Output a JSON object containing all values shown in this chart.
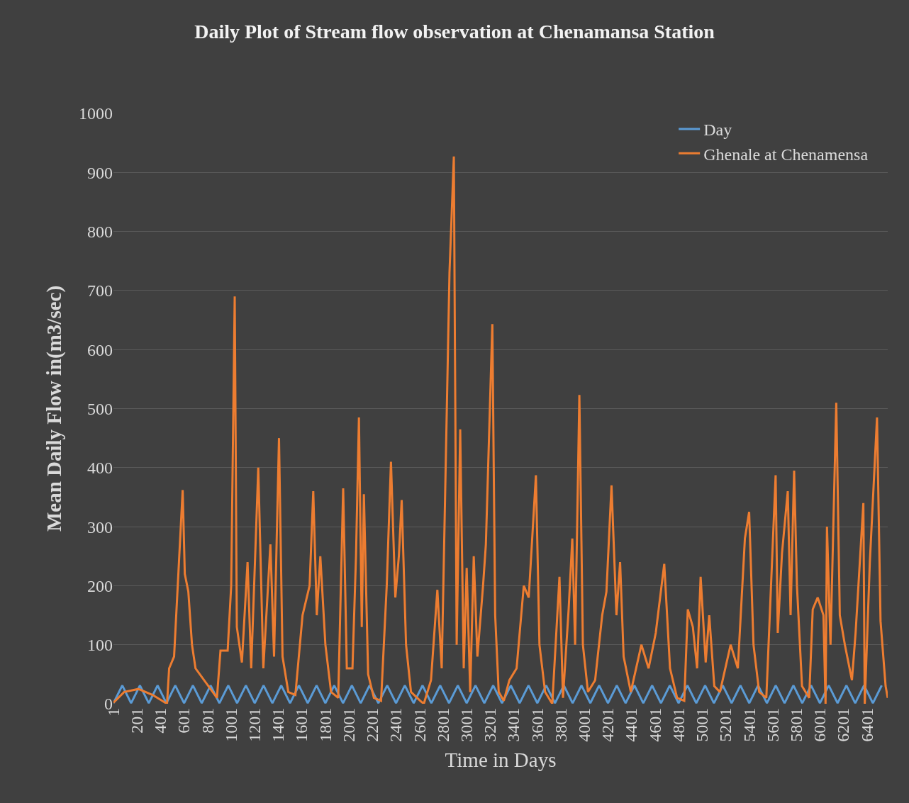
{
  "chart_data": {
    "type": "line",
    "title": "Daily Plot of Stream flow observation at Chenamansa Station",
    "xlabel": "Time in Days",
    "ylabel": "Mean Daily Flow in(m3/sec)",
    "xlim": [
      1,
      6577
    ],
    "xticks": [
      1,
      201,
      401,
      601,
      801,
      1001,
      1201,
      1401,
      1601,
      1801,
      2001,
      2201,
      2401,
      2601,
      2801,
      3001,
      3201,
      3401,
      3601,
      3801,
      4001,
      4201,
      4401,
      4601,
      4801,
      5001,
      5201,
      5401,
      5601,
      5801,
      6001,
      6201,
      6401
    ],
    "ylim": [
      0,
      1000
    ],
    "yticks": [
      0,
      100,
      200,
      300,
      400,
      500,
      600,
      700,
      800,
      900,
      1000
    ],
    "grid": "y",
    "legend": "top right",
    "marker": "none",
    "line_style": "solid",
    "series": [
      {
        "name": "Day",
        "color": "#5b9bd5",
        "x": [
          1,
          76,
          151,
          226,
          301,
          376,
          451,
          526,
          601,
          676,
          751,
          826,
          901,
          976,
          1051,
          1126,
          1201,
          1276,
          1351,
          1426,
          1501,
          1576,
          1651,
          1726,
          1801,
          1876,
          1951,
          2026,
          2101,
          2176,
          2251,
          2326,
          2401,
          2476,
          2551,
          2626,
          2701,
          2776,
          2851,
          2926,
          3001,
          3076,
          3151,
          3226,
          3301,
          3376,
          3451,
          3526,
          3601,
          3676,
          3751,
          3826,
          3901,
          3976,
          4051,
          4126,
          4201,
          4276,
          4351,
          4426,
          4501,
          4576,
          4651,
          4726,
          4801,
          4876,
          4951,
          5026,
          5101,
          5176,
          5251,
          5326,
          5401,
          5476,
          5551,
          5626,
          5701,
          5776,
          5851,
          5926,
          6001,
          6076,
          6151,
          6226,
          6301,
          6376,
          6451,
          6526
        ],
        "values": [
          1,
          31,
          1,
          31,
          1,
          31,
          1,
          31,
          1,
          31,
          1,
          31,
          1,
          31,
          1,
          31,
          1,
          31,
          1,
          31,
          1,
          31,
          1,
          31,
          1,
          31,
          1,
          31,
          1,
          31,
          1,
          31,
          1,
          31,
          1,
          31,
          1,
          31,
          1,
          31,
          1,
          31,
          1,
          31,
          1,
          31,
          1,
          31,
          1,
          31,
          1,
          31,
          1,
          31,
          1,
          31,
          1,
          31,
          1,
          31,
          1,
          31,
          1,
          31,
          1,
          31,
          1,
          31,
          1,
          31,
          1,
          31,
          1,
          31,
          1,
          31,
          1,
          31,
          1,
          31,
          1,
          31,
          1,
          31,
          1,
          31,
          1,
          31
        ]
      },
      {
        "name": "Ghenale at Chenamensa",
        "color": "#ed7d31",
        "x": [
          1,
          92,
          213,
          334,
          456,
          474,
          516,
          589,
          607,
          637,
          668,
          698,
          880,
          910,
          971,
          1001,
          1031,
          1049,
          1092,
          1140,
          1171,
          1231,
          1274,
          1334,
          1365,
          1407,
          1437,
          1486,
          1546,
          1607,
          1667,
          1698,
          1728,
          1758,
          1801,
          1849,
          1910,
          1952,
          1983,
          2031,
          2061,
          2086,
          2110,
          2128,
          2164,
          2213,
          2274,
          2322,
          2358,
          2395,
          2425,
          2449,
          2486,
          2528,
          2607,
          2637,
          2698,
          2752,
          2789,
          2855,
          2892,
          2916,
          2946,
          2976,
          3001,
          3031,
          3061,
          3092,
          3140,
          3164,
          3219,
          3243,
          3273,
          3316,
          3364,
          3425,
          3486,
          3528,
          3589,
          3619,
          3667,
          3728,
          3789,
          3819,
          3867,
          3898,
          3922,
          3958,
          3988,
          4031,
          4092,
          4152,
          4188,
          4231,
          4273,
          4304,
          4334,
          4395,
          4485,
          4546,
          4607,
          4679,
          4728,
          4788,
          4849,
          4879,
          4922,
          4958,
          4988,
          5031,
          5061,
          5104,
          5152,
          5243,
          5304,
          5364,
          5400,
          5437,
          5485,
          5546,
          5625,
          5643,
          5679,
          5728,
          5752,
          5782,
          5806,
          5849,
          5910,
          5940,
          5982,
          6031,
          6049,
          6061,
          6091,
          6140,
          6170,
          6213,
          6273,
          6304,
          6370,
          6382,
          6425,
          6486,
          6516,
          6559,
          6577
        ],
        "values": [
          2,
          20,
          25,
          15,
          0,
          60,
          80,
          362,
          220,
          190,
          100,
          60,
          10,
          90,
          90,
          200,
          690,
          130,
          70,
          240,
          60,
          400,
          60,
          270,
          80,
          450,
          80,
          20,
          15,
          150,
          200,
          360,
          150,
          250,
          100,
          20,
          10,
          365,
          60,
          60,
          250,
          485,
          130,
          355,
          50,
          10,
          5,
          200,
          410,
          180,
          250,
          345,
          100,
          20,
          5,
          0,
          40,
          193,
          60,
          730,
          927,
          100,
          465,
          60,
          230,
          20,
          250,
          80,
          200,
          270,
          643,
          150,
          20,
          5,
          40,
          60,
          200,
          180,
          387,
          100,
          20,
          0,
          215,
          10,
          160,
          280,
          100,
          523,
          100,
          20,
          40,
          150,
          190,
          370,
          150,
          240,
          80,
          20,
          100,
          60,
          120,
          237,
          60,
          10,
          5,
          160,
          130,
          60,
          215,
          70,
          150,
          30,
          20,
          100,
          60,
          280,
          325,
          100,
          20,
          10,
          387,
          120,
          255,
          360,
          150,
          395,
          200,
          30,
          10,
          160,
          180,
          150,
          0,
          300,
          100,
          510,
          150,
          100,
          40,
          120,
          340,
          0,
          240,
          485,
          140,
          30,
          10
        ]
      }
    ]
  }
}
